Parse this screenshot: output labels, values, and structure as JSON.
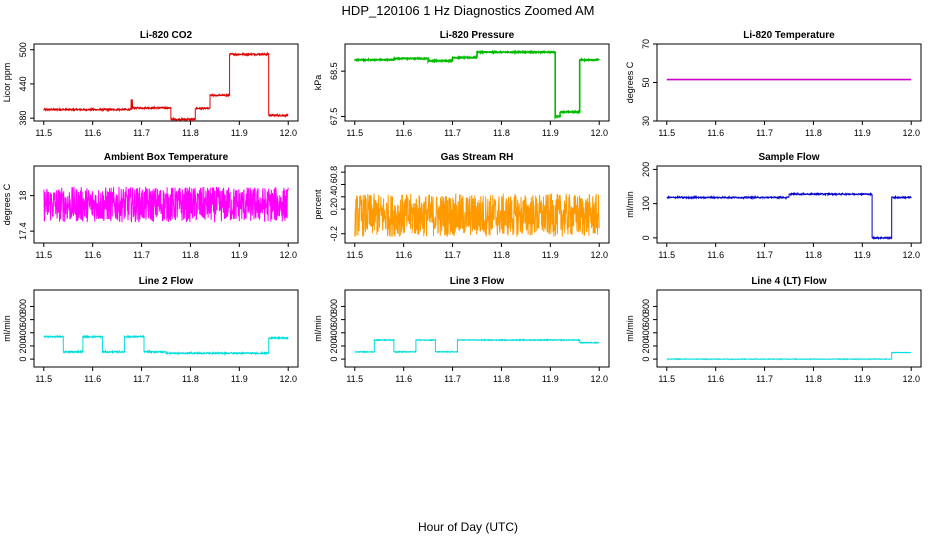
{
  "figure": {
    "title": "HDP_120106  1 Hz Diagnostics Zoomed AM",
    "xlabel": "Hour of Day (UTC)"
  },
  "chart_data": [
    {
      "type": "line",
      "title": "Li-820 CO2",
      "ylabel": "Licor ppm",
      "color": "#dd0000",
      "xlim": [
        11.5,
        12.0
      ],
      "ylim": [
        375,
        510
      ],
      "xticks": [
        "11.5",
        "11.6",
        "11.7",
        "11.8",
        "11.9",
        "12.0"
      ],
      "yticks": [
        380,
        440,
        500
      ],
      "segments": [
        [
          11.5,
          11.68,
          395
        ],
        [
          11.68,
          11.76,
          398
        ],
        [
          11.76,
          11.81,
          378
        ],
        [
          11.81,
          11.84,
          397
        ],
        [
          11.84,
          11.88,
          420
        ],
        [
          11.88,
          11.96,
          492
        ],
        [
          11.96,
          12.0,
          385
        ]
      ],
      "noise": 1.5,
      "spikes": [
        [
          11.68,
          412
        ]
      ]
    },
    {
      "type": "line",
      "title": "Li-820 Pressure",
      "ylabel": "kPa",
      "color": "#00bb00",
      "xlim": [
        11.5,
        12.0
      ],
      "ylim": [
        67.4,
        69.1
      ],
      "xticks": [
        "11.5",
        "11.6",
        "11.7",
        "11.8",
        "11.9",
        "12.0"
      ],
      "yticks": [
        67.5,
        68.5
      ],
      "segments": [
        [
          11.5,
          11.58,
          68.75
        ],
        [
          11.58,
          11.65,
          68.78
        ],
        [
          11.65,
          11.7,
          68.73
        ],
        [
          11.7,
          11.75,
          68.8
        ],
        [
          11.75,
          11.91,
          68.92
        ],
        [
          11.91,
          11.92,
          67.5
        ],
        [
          11.92,
          11.96,
          67.6
        ],
        [
          11.96,
          12.0,
          68.75
        ]
      ],
      "noise": 0.01,
      "spikes": []
    },
    {
      "type": "line",
      "title": "Li-820 Temperature",
      "ylabel": "degrees C",
      "color": "#cc00cc",
      "xlim": [
        11.5,
        12.0
      ],
      "ylim": [
        30,
        70
      ],
      "xticks": [
        "11.5",
        "11.6",
        "11.7",
        "11.8",
        "11.9",
        "12.0"
      ],
      "yticks": [
        30,
        50,
        70
      ],
      "segments": [
        [
          11.5,
          12.0,
          51.5
        ]
      ],
      "noise": 0,
      "spikes": []
    },
    {
      "type": "line",
      "title": "Ambient Box Temperature",
      "ylabel": "degrees C",
      "color": "#ff00ff",
      "xlim": [
        11.5,
        12.0
      ],
      "ylim": [
        17.2,
        18.5
      ],
      "xticks": [
        "11.5",
        "11.6",
        "11.7",
        "11.8",
        "11.9",
        "12.0"
      ],
      "yticks": [
        17.4,
        18.0
      ],
      "segments": [
        [
          11.5,
          12.0,
          17.85
        ]
      ],
      "noise": 0.3,
      "spikes": []
    },
    {
      "type": "line",
      "title": "Gas Stream RH",
      "ylabel": "percent",
      "color": "#ff9900",
      "xlim": [
        11.5,
        12.0
      ],
      "ylim": [
        -0.35,
        0.9
      ],
      "xticks": [
        "11.5",
        "11.6",
        "11.7",
        "11.8",
        "11.9",
        "12.0"
      ],
      "yticks": [
        -0.2,
        0.2,
        0.4,
        0.6,
        0.8
      ],
      "segments": [
        [
          11.5,
          12.0,
          0.1
        ]
      ],
      "noise": 0.35,
      "spikes": []
    },
    {
      "type": "line",
      "title": "Sample Flow",
      "ylabel": "ml/min",
      "color": "#0000cc",
      "xlim": [
        11.5,
        12.0
      ],
      "ylim": [
        -15,
        210
      ],
      "xticks": [
        "11.5",
        "11.6",
        "11.7",
        "11.8",
        "11.9",
        "12.0"
      ],
      "yticks": [
        0,
        100,
        200
      ],
      "segments": [
        [
          11.5,
          11.75,
          118
        ],
        [
          11.75,
          11.92,
          128
        ],
        [
          11.92,
          11.96,
          0
        ],
        [
          11.96,
          12.0,
          118
        ]
      ],
      "noise": 2,
      "spikes": []
    },
    {
      "type": "line",
      "title": "Line 2 Flow",
      "ylabel": "ml/min",
      "color": "#00dddd",
      "xlim": [
        11.5,
        12.0
      ],
      "ylim": [
        -120,
        1050
      ],
      "xticks": [
        "11.5",
        "11.6",
        "11.7",
        "11.8",
        "11.9",
        "12.0"
      ],
      "yticks": [
        0,
        200,
        400,
        600,
        800
      ],
      "segments": [
        [
          11.5,
          11.54,
          340
        ],
        [
          11.54,
          11.58,
          110
        ],
        [
          11.58,
          11.62,
          340
        ],
        [
          11.62,
          11.665,
          110
        ],
        [
          11.665,
          11.705,
          340
        ],
        [
          11.705,
          11.75,
          110
        ],
        [
          11.75,
          11.96,
          90
        ],
        [
          11.96,
          12.0,
          320
        ]
      ],
      "noise": 10,
      "spikes": []
    },
    {
      "type": "line",
      "title": "Line 3 Flow",
      "ylabel": "ml/min",
      "color": "#00dddd",
      "xlim": [
        11.5,
        12.0
      ],
      "ylim": [
        -120,
        1050
      ],
      "xticks": [
        "11.5",
        "11.6",
        "11.7",
        "11.8",
        "11.9",
        "12.0"
      ],
      "yticks": [
        0,
        200,
        400,
        600,
        800
      ],
      "segments": [
        [
          11.5,
          11.54,
          110
        ],
        [
          11.54,
          11.58,
          290
        ],
        [
          11.58,
          11.625,
          110
        ],
        [
          11.625,
          11.665,
          290
        ],
        [
          11.665,
          11.71,
          110
        ],
        [
          11.71,
          11.96,
          290
        ],
        [
          11.96,
          12.0,
          250
        ]
      ],
      "noise": 6,
      "spikes": []
    },
    {
      "type": "line",
      "title": "Line 4 (LT) Flow",
      "ylabel": "ml/min",
      "color": "#00dddd",
      "xlim": [
        11.5,
        12.0
      ],
      "ylim": [
        -120,
        1050
      ],
      "xticks": [
        "11.5",
        "11.6",
        "11.7",
        "11.8",
        "11.9",
        "12.0"
      ],
      "yticks": [
        0,
        200,
        400,
        600,
        800
      ],
      "segments": [
        [
          11.5,
          11.96,
          0
        ],
        [
          11.96,
          12.0,
          100
        ]
      ],
      "noise": 4,
      "spikes": []
    }
  ]
}
